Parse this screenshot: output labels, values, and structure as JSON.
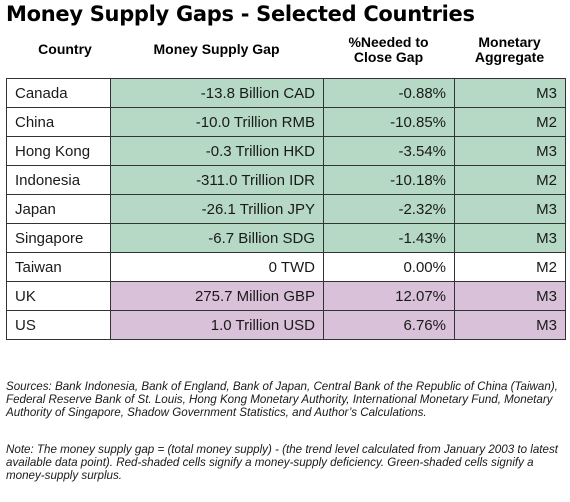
{
  "title": "Money Supply Gaps - Selected Countries",
  "headers": {
    "country": "Country",
    "gap": "Money Supply Gap",
    "pct_line1": "%Needed to",
    "pct_line2": "Close Gap",
    "agg_line1": "Monetary",
    "agg_line2": "Aggregate"
  },
  "rows": [
    {
      "country": "Canada",
      "gap": "-13.8 Billion CAD",
      "pct": "-0.88%",
      "agg": "M3",
      "shade": "green"
    },
    {
      "country": "China",
      "gap": "-10.0 Trillion RMB",
      "pct": "-10.85%",
      "agg": "M2",
      "shade": "green"
    },
    {
      "country": "Hong Kong",
      "gap": "-0.3 Trillion HKD",
      "pct": "-3.54%",
      "agg": "M3",
      "shade": "green"
    },
    {
      "country": "Indonesia",
      "gap": "-311.0 Trillion IDR",
      "pct": "-10.18%",
      "agg": "M2",
      "shade": "green"
    },
    {
      "country": "Japan",
      "gap": "-26.1 Trillion JPY",
      "pct": "-2.32%",
      "agg": "M3",
      "shade": "green"
    },
    {
      "country": "Singapore",
      "gap": "-6.7 Billion SDG",
      "pct": "-1.43%",
      "agg": "M3",
      "shade": "green"
    },
    {
      "country": "Taiwan",
      "gap": "0 TWD",
      "pct": "0.00%",
      "agg": "M2",
      "shade": "white"
    },
    {
      "country": "UK",
      "gap": "275.7 Million GBP",
      "pct": "12.07%",
      "agg": "M3",
      "shade": "pink"
    },
    {
      "country": "US",
      "gap": "1.0 Trillion USD",
      "pct": "6.76%",
      "agg": "M3",
      "shade": "pink"
    }
  ],
  "colors": {
    "green": "#b6d9c6",
    "pink": "#d9c1d9",
    "white": "#ffffff"
  },
  "sources": "Sources: Bank Indonesia, Bank of England, Bank of Japan, Central Bank of the Republic of China (Taiwan), Federal Reserve Bank of St. Louis, Hong Kong Monetary Authority, International Monetary Fund, Monetary Authority of Singapore, Shadow Government Statistics, and Author’s Calculations.",
  "note": "Note: The money supply gap = (total money supply) - (the trend level calculated from January 2003 to latest available data point). Red-shaded cells signify a money-supply deficiency. Green-shaded cells signify a money-supply surplus."
}
